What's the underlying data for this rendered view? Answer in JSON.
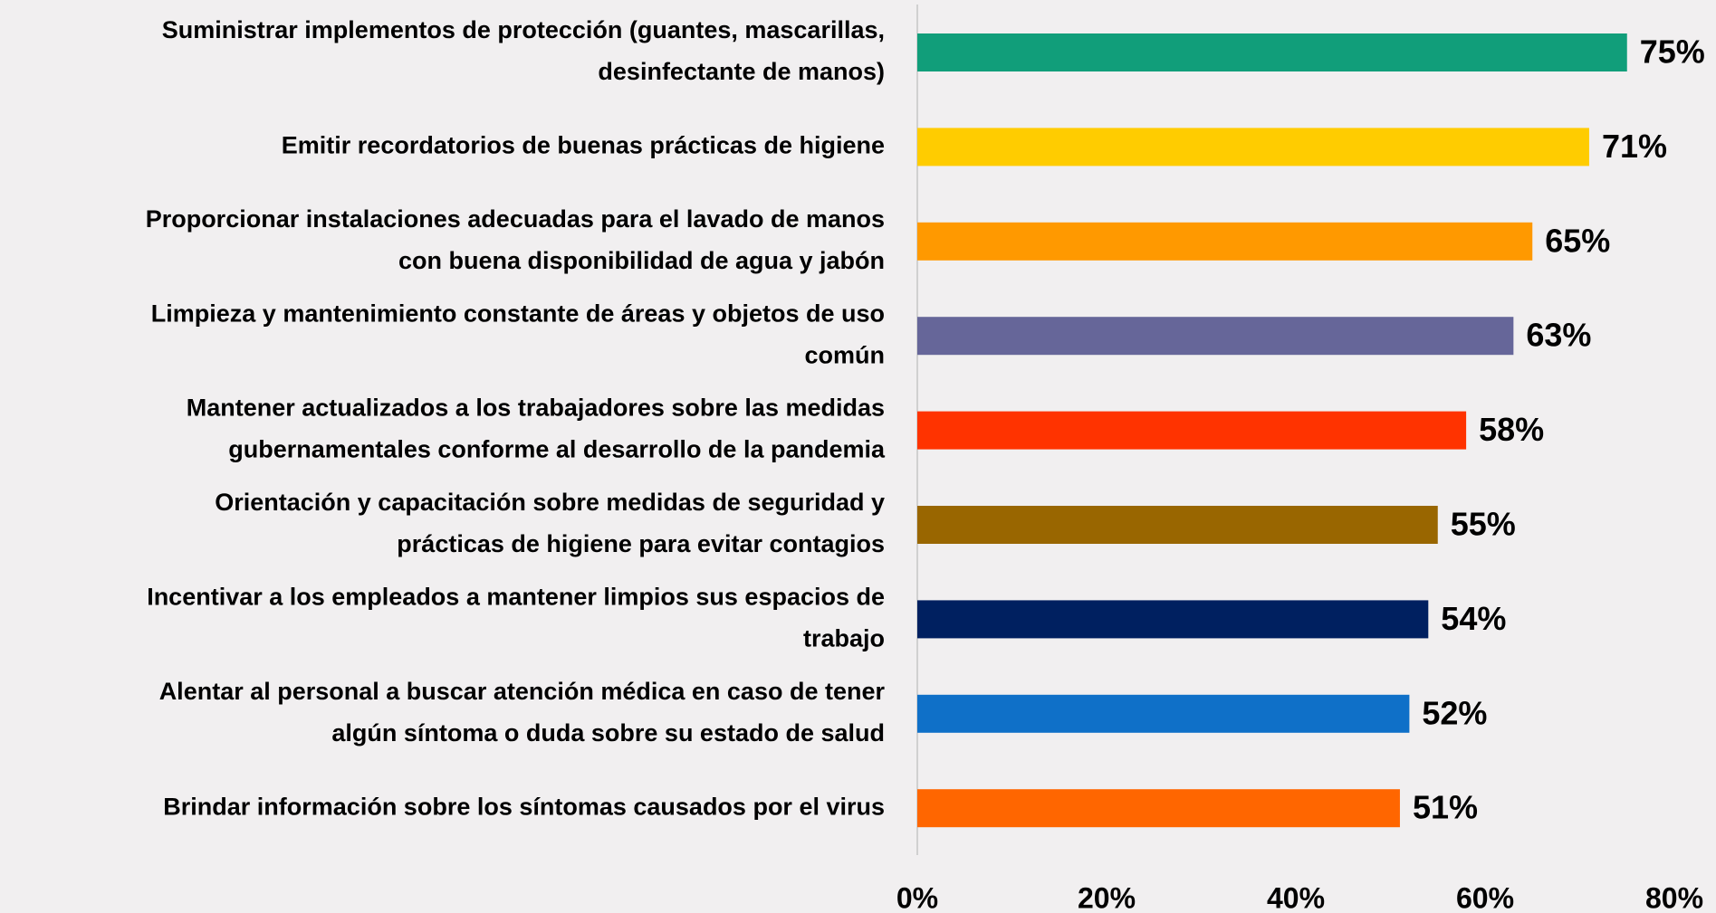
{
  "chart_data": {
    "type": "barh",
    "categories": [
      [
        "Suministrar implementos de protección (guantes, mascarillas,",
        "desinfectante de manos)"
      ],
      [
        "Emitir recordatorios de buenas prácticas de higiene"
      ],
      [
        "Proporcionar instalaciones adecuadas para el lavado de manos",
        "con buena disponibilidad de agua y jabón"
      ],
      [
        "Limpieza y mantenimiento constante de áreas y objetos de uso",
        "común"
      ],
      [
        "Mantener actualizados a los trabajadores sobre las medidas",
        "gubernamentales conforme al desarrollo de la pandemia"
      ],
      [
        "Orientación y capacitación sobre medidas de seguridad y",
        "prácticas de higiene para evitar contagios"
      ],
      [
        "Incentivar a los empleados a mantener limpios sus espacios de",
        "trabajo"
      ],
      [
        "Alentar al personal a buscar atención médica en caso de tener",
        "algún síntoma o duda sobre su estado de salud"
      ],
      [
        "Brindar información sobre los síntomas causados por el virus"
      ]
    ],
    "values": [
      75,
      71,
      65,
      63,
      58,
      55,
      54,
      52,
      51
    ],
    "value_labels": [
      "75%",
      "71%",
      "65%",
      "63%",
      "58%",
      "55%",
      "54%",
      "52%",
      "51%"
    ],
    "colors": [
      "#119e7a",
      "#ffcc00",
      "#ff9900",
      "#666699",
      "#ff3300",
      "#996600",
      "#002060",
      "#0f70c8",
      "#ff6600"
    ],
    "xlim": [
      0,
      80
    ],
    "xticks": [
      {
        "value": 0,
        "label": "0%"
      },
      {
        "value": 20,
        "label": "20%"
      },
      {
        "value": 40,
        "label": "40%"
      },
      {
        "value": 60,
        "label": "60%"
      },
      {
        "value": 80,
        "label": "80%"
      }
    ]
  }
}
